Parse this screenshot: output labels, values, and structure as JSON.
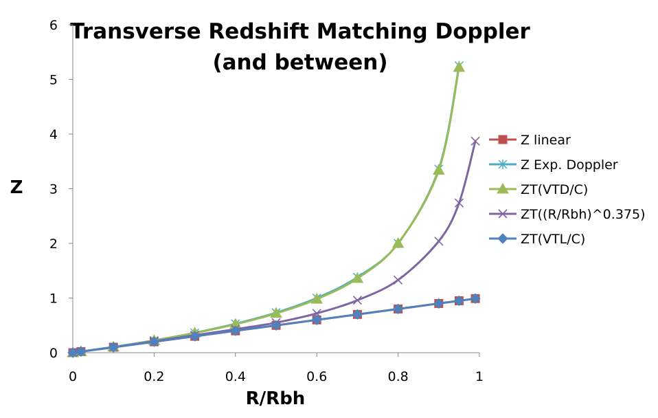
{
  "chart_data": {
    "type": "line",
    "title_lines": [
      "Transverse Redshift Matching Doppler",
      "(and between)"
    ],
    "xlabel": "R/Rbh",
    "ylabel": "Z",
    "xlim": [
      0,
      1
    ],
    "ylim": [
      0,
      6
    ],
    "x_ticks": [
      0,
      0.2,
      0.4,
      0.6,
      0.8,
      1
    ],
    "x_tick_labels": [
      "0",
      "0.2",
      "0.4",
      "0.6",
      "0.8",
      "1"
    ],
    "y_ticks": [
      0,
      1,
      2,
      3,
      4,
      5,
      6
    ],
    "y_tick_labels": [
      "0",
      "1",
      "2",
      "3",
      "4",
      "5",
      "6"
    ],
    "grid": false,
    "legend_position": "right",
    "series": [
      {
        "name": "Z linear",
        "color": "#C0504D",
        "marker": "square",
        "x": [
          0,
          0.02,
          0.1,
          0.2,
          0.3,
          0.4,
          0.5,
          0.6,
          0.7,
          0.8,
          0.9,
          0.95,
          0.99
        ],
        "y": [
          0,
          0.02,
          0.1,
          0.2,
          0.3,
          0.4,
          0.5,
          0.6,
          0.7,
          0.8,
          0.9,
          0.95,
          0.99
        ]
      },
      {
        "name": "Z Exp. Doppler",
        "color": "#4BACC6",
        "marker": "asterisk",
        "x": [
          0,
          0.02,
          0.1,
          0.2,
          0.3,
          0.4,
          0.5,
          0.6,
          0.7,
          0.8,
          0.9,
          0.95
        ],
        "y": [
          0,
          0.02,
          0.106,
          0.225,
          0.363,
          0.528,
          0.732,
          1.0,
          1.38,
          2.0,
          3.36,
          5.25
        ]
      },
      {
        "name": "ZT(VTD/C)",
        "color": "#9BBB59",
        "marker": "triangle",
        "x": [
          0,
          0.02,
          0.1,
          0.2,
          0.3,
          0.4,
          0.5,
          0.6,
          0.7,
          0.8,
          0.9,
          0.95
        ],
        "y": [
          0,
          0.02,
          0.105,
          0.224,
          0.36,
          0.52,
          0.72,
          0.98,
          1.36,
          2.0,
          3.34,
          5.22
        ]
      },
      {
        "name": "ZT((R/Rbh)^0.375)",
        "color": "#8064A2",
        "marker": "x",
        "x": [
          0,
          0.02,
          0.1,
          0.2,
          0.3,
          0.4,
          0.5,
          0.6,
          0.7,
          0.8,
          0.9,
          0.95,
          0.99
        ],
        "y": [
          0,
          0.02,
          0.1,
          0.21,
          0.32,
          0.43,
          0.55,
          0.72,
          0.96,
          1.33,
          2.04,
          2.74,
          3.87
        ]
      },
      {
        "name": "ZT(VTL/C)",
        "color": "#4F81BD",
        "marker": "diamond",
        "x": [
          0,
          0.02,
          0.1,
          0.2,
          0.3,
          0.4,
          0.5,
          0.6,
          0.7,
          0.8,
          0.9,
          0.95,
          0.99
        ],
        "y": [
          0,
          0.02,
          0.1,
          0.2,
          0.3,
          0.4,
          0.5,
          0.6,
          0.7,
          0.8,
          0.9,
          0.95,
          0.99
        ]
      }
    ]
  }
}
